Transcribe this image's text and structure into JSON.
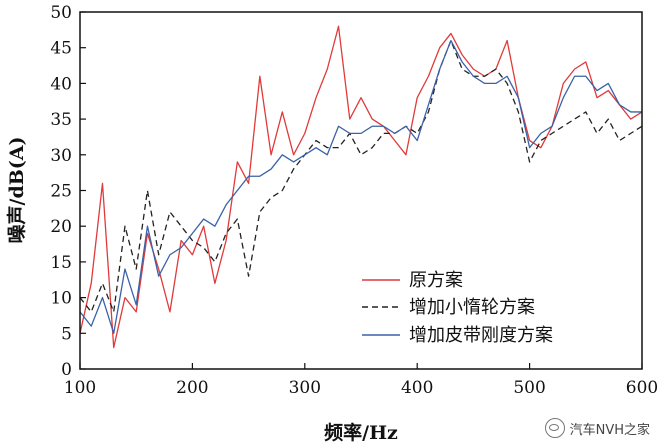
{
  "chart_data": {
    "type": "line",
    "title": "",
    "xlabel": "频率/Hz",
    "ylabel": "噪声/dB(A)",
    "xlim": [
      100,
      600
    ],
    "ylim": [
      0,
      50
    ],
    "xticks": [
      100,
      200,
      300,
      400,
      500,
      600
    ],
    "yticks": [
      0,
      5,
      10,
      15,
      20,
      25,
      30,
      35,
      40,
      45,
      50
    ],
    "grid": false,
    "legend_position": "bottom-right",
    "x": [
      100,
      110,
      120,
      130,
      140,
      150,
      160,
      170,
      180,
      190,
      200,
      210,
      220,
      230,
      240,
      250,
      260,
      270,
      280,
      290,
      300,
      310,
      320,
      330,
      340,
      350,
      360,
      370,
      380,
      390,
      400,
      410,
      420,
      430,
      440,
      450,
      460,
      470,
      480,
      490,
      500,
      510,
      520,
      530,
      540,
      550,
      560,
      570,
      580,
      590,
      600
    ],
    "series": [
      {
        "name": "原方案",
        "color": "#e03a3a",
        "dash": "solid",
        "values": [
          5,
          12,
          26,
          3,
          10,
          8,
          19,
          14,
          8,
          18,
          16,
          20,
          12,
          18,
          29,
          26,
          41,
          30,
          36,
          30,
          33,
          38,
          42,
          48,
          35,
          38,
          35,
          34,
          32,
          30,
          38,
          41,
          45,
          47,
          44,
          42,
          41,
          42,
          46,
          38,
          32,
          31,
          34,
          40,
          42,
          43,
          38,
          39,
          37,
          35,
          36
        ]
      },
      {
        "name": "增加小惰轮方案",
        "color": "#222222",
        "dash": "dashed",
        "values": [
          10,
          8,
          12,
          8,
          20,
          14,
          25,
          16,
          22,
          20,
          18,
          17,
          15,
          19,
          21,
          13,
          22,
          24,
          25,
          28,
          30,
          32,
          31,
          31,
          33,
          30,
          31,
          33,
          33,
          34,
          33,
          36,
          42,
          46,
          42,
          41,
          41,
          42,
          40,
          36,
          29,
          32,
          33,
          34,
          35,
          36,
          33,
          35,
          32,
          33,
          34
        ]
      },
      {
        "name": "增加皮带刚度方案",
        "color": "#3a62a8",
        "dash": "solid",
        "values": [
          8,
          6,
          10,
          5,
          14,
          9,
          20,
          13,
          16,
          17,
          19,
          21,
          20,
          23,
          25,
          27,
          27,
          28,
          30,
          29,
          30,
          31,
          30,
          34,
          33,
          33,
          34,
          34,
          33,
          34,
          32,
          37,
          42,
          46,
          43,
          41,
          40,
          40,
          41,
          38,
          31,
          33,
          34,
          38,
          41,
          41,
          39,
          40,
          37,
          36,
          36
        ]
      }
    ]
  },
  "watermark": {
    "text": "汽车NVH之家",
    "icon": "wechat-logo-icon"
  }
}
